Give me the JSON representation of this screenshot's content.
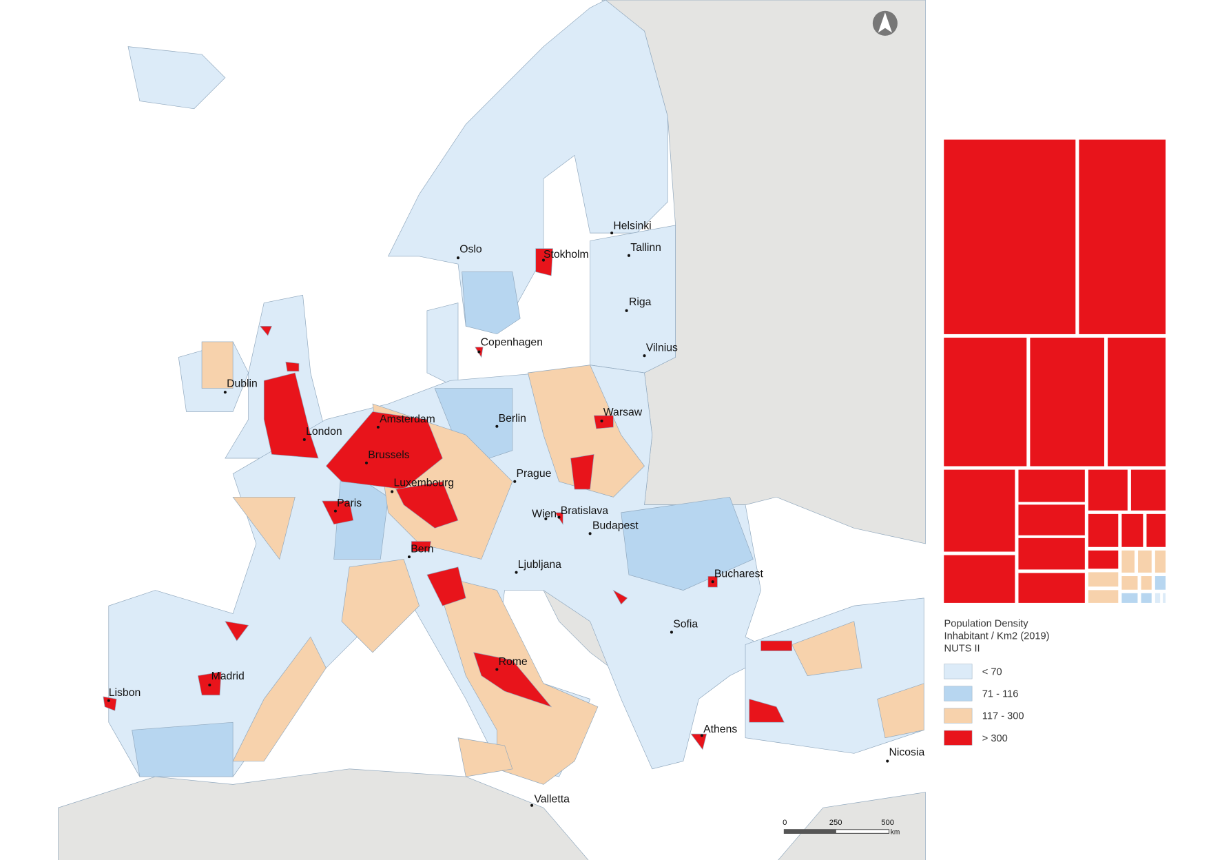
{
  "cities": [
    "Oslo",
    "Stokholm",
    "Helsinki",
    "Tallinn",
    "Riga",
    "Vilnius",
    "Copenhagen",
    "Dublin",
    "Amsterdam",
    "Berlin",
    "Warsaw",
    "London",
    "Brussels",
    "Prague",
    "Luxembourg",
    "Paris",
    "Wien",
    "Bratislava",
    "Budapest",
    "Bern",
    "Ljubljana",
    "Bucharest",
    "Sofia",
    "Rome",
    "Madrid",
    "Lisbon",
    "Athens",
    "Nicosia",
    "Valletta"
  ],
  "legend": {
    "title": [
      "Population Density",
      "Inhabitant / Km2 (2019)",
      "NUTS II"
    ],
    "items": [
      {
        "label": "< 70",
        "color": "#dcebf8"
      },
      {
        "label": "71 - 116",
        "color": "#b7d6f0"
      },
      {
        "label": "117 - 300",
        "color": "#f7d2ac"
      },
      {
        "label": "> 300",
        "color": "#e8141b"
      }
    ]
  },
  "scale_bar": {
    "ticks": [
      "0",
      "250",
      "500"
    ],
    "unit": "km"
  }
}
